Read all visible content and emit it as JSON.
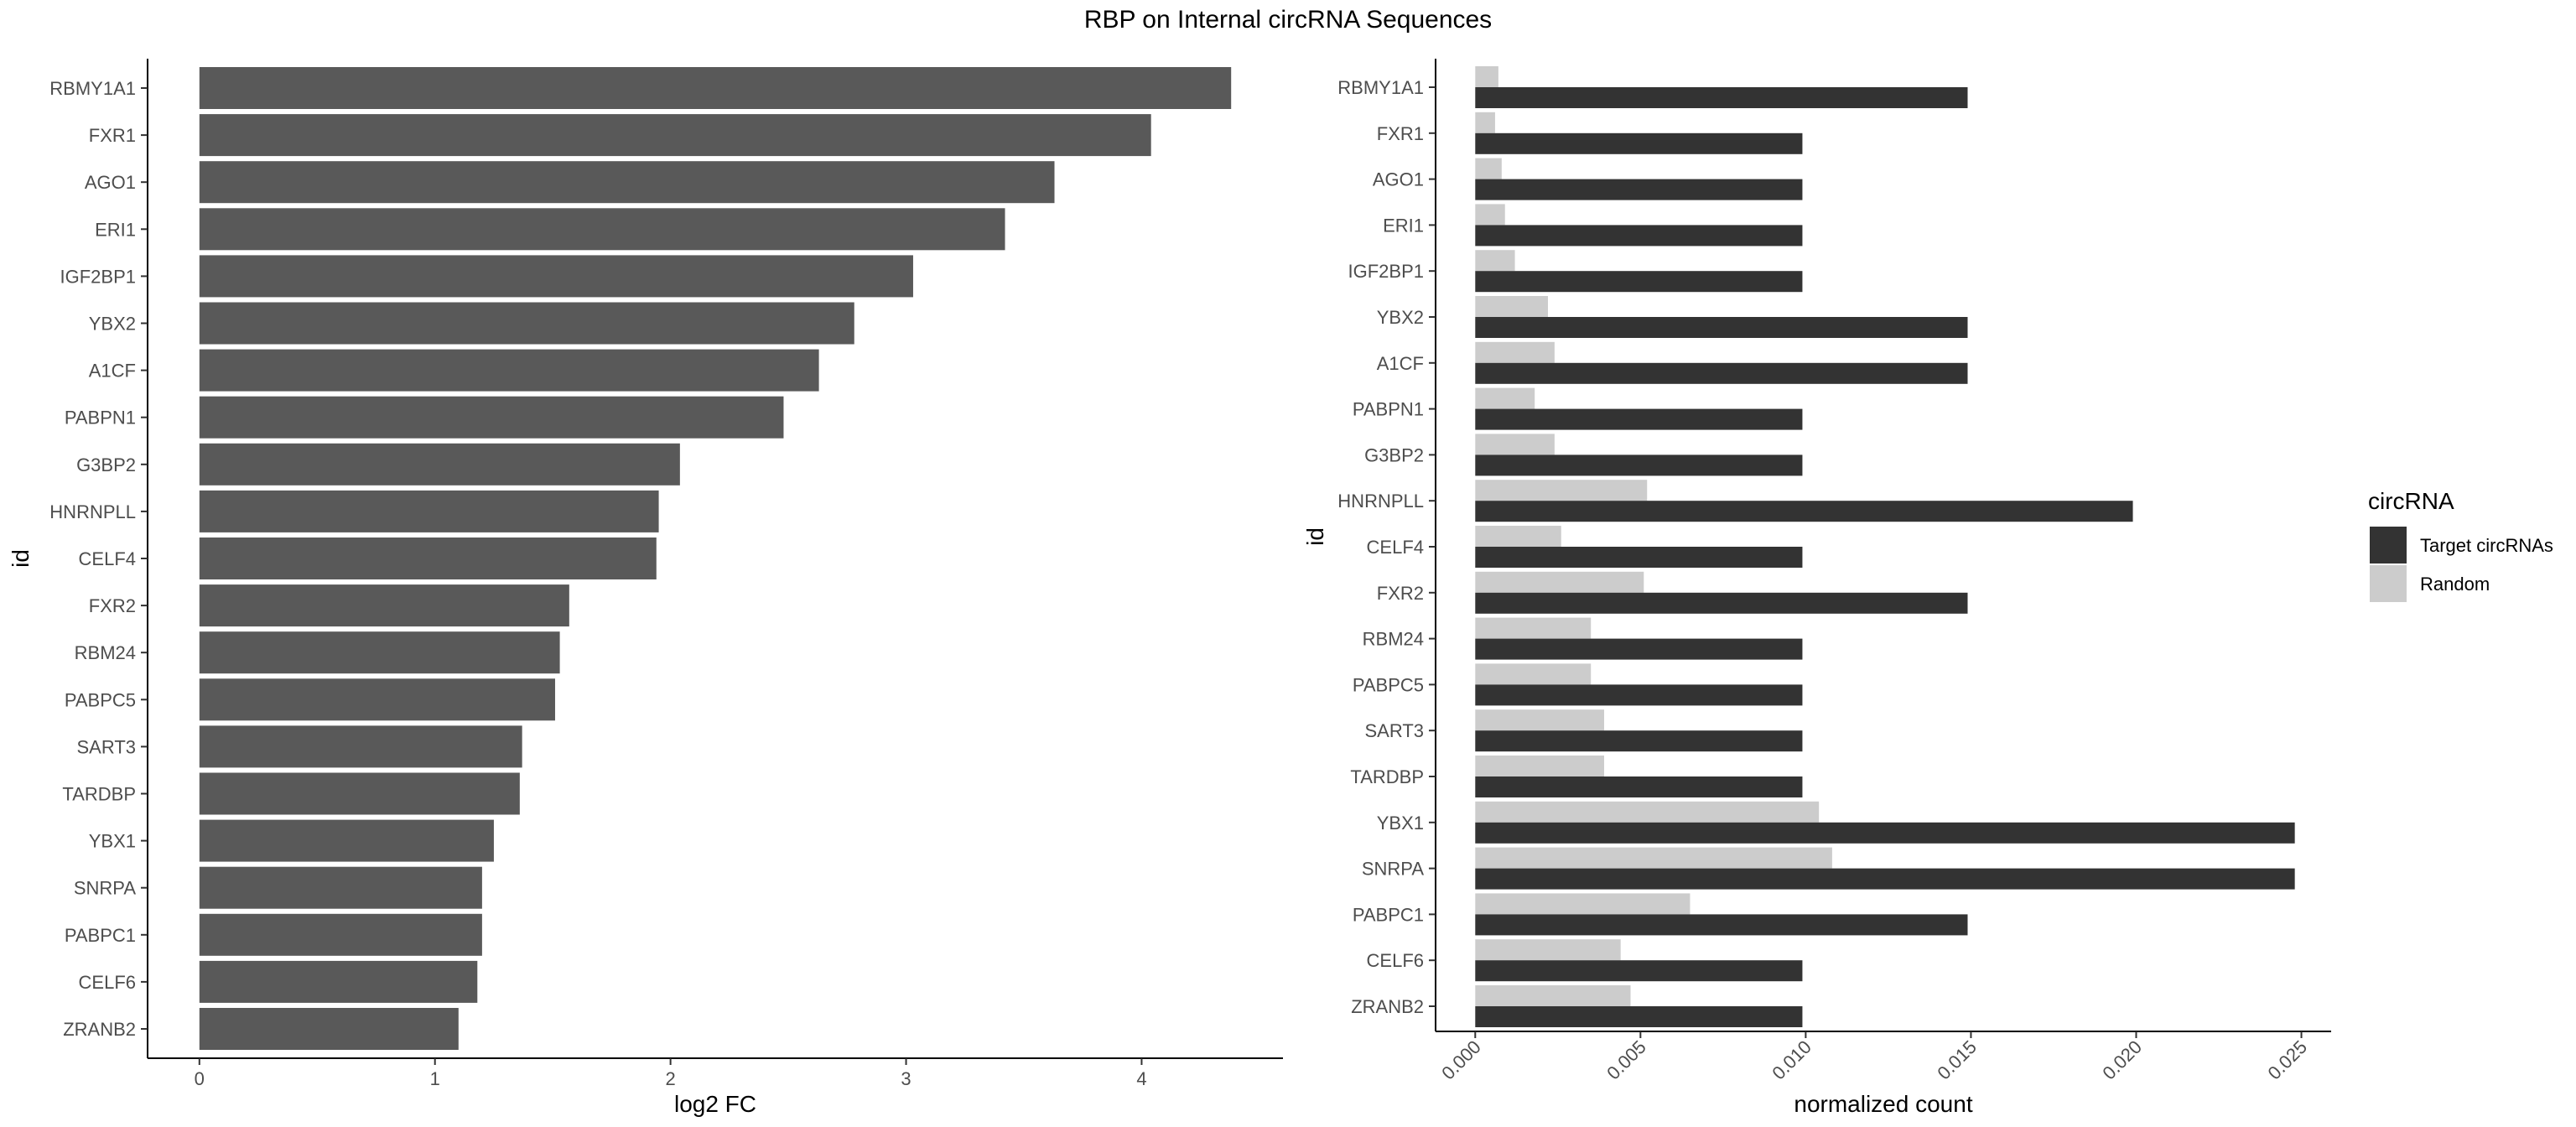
{
  "title": "RBP on Internal circRNA Sequences",
  "colors": {
    "left_bar": "#595959",
    "target": "#333333",
    "random": "#cccccc",
    "axis": "#000000",
    "tick_label": "#4d4d4d"
  },
  "chart_data": [
    {
      "type": "bar",
      "orientation": "horizontal",
      "xlabel": "log2 FC",
      "ylabel": "id",
      "xlim": [
        -0.22,
        4.6
      ],
      "xticks": [
        0,
        1,
        2,
        3,
        4
      ],
      "categories": [
        "RBMY1A1",
        "FXR1",
        "AGO1",
        "ERI1",
        "IGF2BP1",
        "YBX2",
        "A1CF",
        "PABPN1",
        "G3BP2",
        "HNRNPLL",
        "CELF4",
        "FXR2",
        "RBM24",
        "PABPC5",
        "SART3",
        "TARDBP",
        "YBX1",
        "SNRPA",
        "PABPC1",
        "CELF6",
        "ZRANB2"
      ],
      "values": [
        4.38,
        4.04,
        3.63,
        3.42,
        3.03,
        2.78,
        2.63,
        2.48,
        2.04,
        1.95,
        1.94,
        1.57,
        1.53,
        1.51,
        1.37,
        1.36,
        1.25,
        1.2,
        1.2,
        1.18,
        1.1
      ],
      "grid": false
    },
    {
      "type": "bar",
      "orientation": "horizontal",
      "grouped": true,
      "xlabel": "normalized count",
      "ylabel": "id",
      "xlim": [
        -0.0012,
        0.0259
      ],
      "xticks": [
        "0.000",
        "0.005",
        "0.010",
        "0.015",
        "0.020",
        "0.025"
      ],
      "xtick_values": [
        0,
        0.005,
        0.01,
        0.015,
        0.02,
        0.025
      ],
      "categories": [
        "RBMY1A1",
        "FXR1",
        "AGO1",
        "ERI1",
        "IGF2BP1",
        "YBX2",
        "A1CF",
        "PABPN1",
        "G3BP2",
        "HNRNPLL",
        "CELF4",
        "FXR2",
        "RBM24",
        "PABPC5",
        "SART3",
        "TARDBP",
        "YBX1",
        "SNRPA",
        "PABPC1",
        "CELF6",
        "ZRANB2"
      ],
      "legend_title": "circRNA",
      "legend_position": "right",
      "series": [
        {
          "name": "Target circRNAs",
          "color": "#333333",
          "values": [
            0.0149,
            0.0099,
            0.0099,
            0.0099,
            0.0099,
            0.0149,
            0.0149,
            0.0099,
            0.0099,
            0.0199,
            0.0099,
            0.0149,
            0.0099,
            0.0099,
            0.0099,
            0.0099,
            0.0248,
            0.0248,
            0.0149,
            0.0099,
            0.0099
          ]
        },
        {
          "name": "Random",
          "color": "#cccccc",
          "values": [
            0.0007,
            0.0006,
            0.0008,
            0.0009,
            0.0012,
            0.0022,
            0.0024,
            0.0018,
            0.0024,
            0.0052,
            0.0026,
            0.0051,
            0.0035,
            0.0035,
            0.0039,
            0.0039,
            0.0104,
            0.0108,
            0.0065,
            0.0044,
            0.0047
          ]
        }
      ],
      "grid": false
    }
  ]
}
